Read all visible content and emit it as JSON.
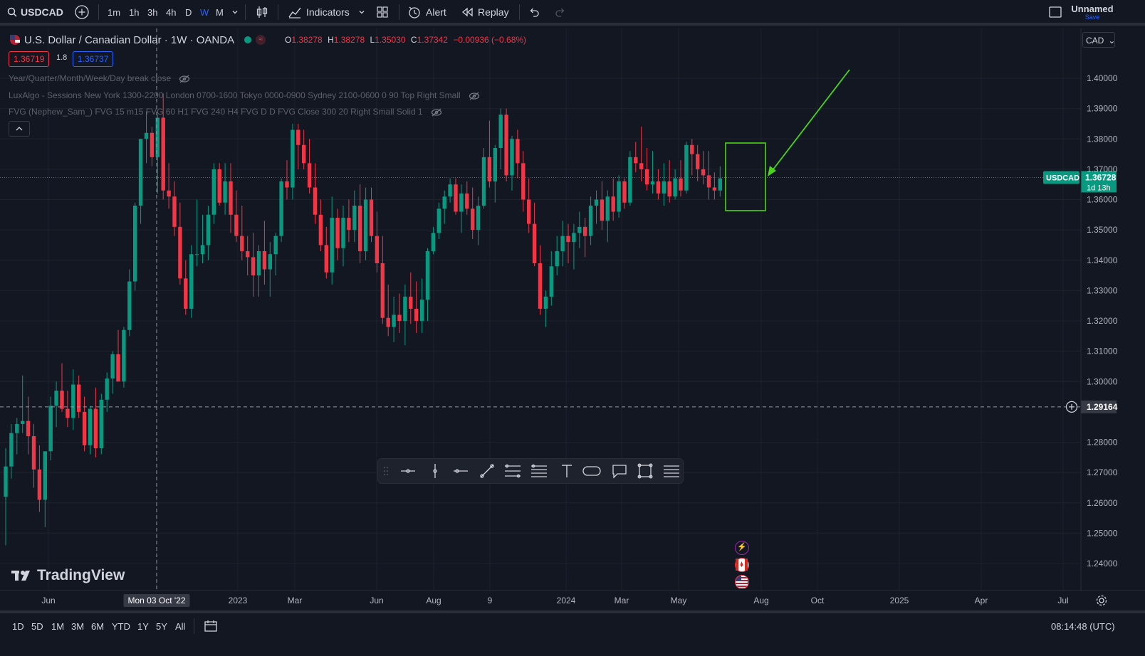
{
  "topbar": {
    "symbol": "USDCAD",
    "timeframes": [
      "1m",
      "1h",
      "3h",
      "4h",
      "D",
      "W",
      "M"
    ],
    "active_timeframe": "W",
    "indicators_label": "Indicators",
    "alert_label": "Alert",
    "replay_label": "Replay",
    "layout_name": "Unnamed",
    "save_label": "Save"
  },
  "legend": {
    "title": "U.S. Dollar / Canadian Dollar · 1W · OANDA",
    "o_label": "O",
    "o": "1.38278",
    "h_label": "H",
    "h": "1.38278",
    "l_label": "L",
    "l": "1.35030",
    "c_label": "C",
    "c": "1.37342",
    "change": "−0.00936 (−0.68%)",
    "bid": "1.36719",
    "spread": "1.8",
    "ask": "1.36737",
    "indicators": [
      "Year/Quarter/Month/Week/Day break close",
      "LuxAlgo - Sessions New York 1300-2200 London 0700-1600 Tokyo 0000-0900 Sydney 2100-0600 0 90 Top Right Small",
      "FVG (Nephew_Sam_) FVG 15 m15 FVG 60 H1 FVG 240 H4 FVG D D FVG Close 300 20 Right Small Solid 1"
    ]
  },
  "price_axis": {
    "currency": "CAD",
    "ticks": [
      "1.40000",
      "1.39000",
      "1.38000",
      "1.37000",
      "1.36000",
      "1.35000",
      "1.34000",
      "1.33000",
      "1.32000",
      "1.31000",
      "1.30000",
      "1.28000",
      "1.27000",
      "1.26000",
      "1.25000",
      "1.24000"
    ],
    "last_label": "USDCAD",
    "last_price": "1.36728",
    "countdown": "1d 13h",
    "crosshair_price": "1.29164"
  },
  "time_axis": {
    "labels": [
      "Jun",
      "Mon 03 Oct '22",
      "2023",
      "Mar",
      "Jun",
      "Aug",
      "9",
      "2024",
      "Mar",
      "May",
      "Aug",
      "Oct",
      "2025",
      "Apr",
      "Jul"
    ]
  },
  "bottombar": {
    "ranges": [
      "1D",
      "5D",
      "1M",
      "3M",
      "6M",
      "YTD",
      "1Y",
      "5Y",
      "All"
    ],
    "clock": "08:14:48 (UTC)"
  },
  "watermark": "TradingView",
  "colors": {
    "up": "#089981",
    "down": "#f23645",
    "background": "#131722",
    "highlight": "#4cd31a",
    "accent": "#2962ff"
  },
  "chart_data": {
    "type": "candlestick",
    "symbol": "USDCAD",
    "interval": "1W",
    "ylim": [
      1.235,
      1.407
    ],
    "candles": [
      [
        1.262,
        1.278,
        1.246,
        1.272
      ],
      [
        1.272,
        1.286,
        1.268,
        1.283
      ],
      [
        1.283,
        1.288,
        1.276,
        1.286
      ],
      [
        1.286,
        1.302,
        1.283,
        1.287
      ],
      [
        1.287,
        1.295,
        1.276,
        1.282
      ],
      [
        1.282,
        1.286,
        1.265,
        1.271
      ],
      [
        1.271,
        1.279,
        1.257,
        1.261
      ],
      [
        1.261,
        1.277,
        1.252,
        1.277
      ],
      [
        1.277,
        1.295,
        1.274,
        1.292
      ],
      [
        1.292,
        1.3,
        1.285,
        1.297
      ],
      [
        1.297,
        1.306,
        1.29,
        1.291
      ],
      [
        1.291,
        1.297,
        1.285,
        1.288
      ],
      [
        1.288,
        1.304,
        1.284,
        1.299
      ],
      [
        1.299,
        1.302,
        1.288,
        1.29
      ],
      [
        1.29,
        1.295,
        1.277,
        1.279
      ],
      [
        1.279,
        1.292,
        1.276,
        1.291
      ],
      [
        1.291,
        1.298,
        1.275,
        1.278
      ],
      [
        1.278,
        1.296,
        1.276,
        1.294
      ],
      [
        1.294,
        1.303,
        1.29,
        1.301
      ],
      [
        1.301,
        1.31,
        1.296,
        1.309
      ],
      [
        1.309,
        1.317,
        1.3,
        1.3
      ],
      [
        1.3,
        1.318,
        1.298,
        1.317
      ],
      [
        1.317,
        1.337,
        1.315,
        1.333
      ],
      [
        1.333,
        1.359,
        1.33,
        1.358
      ],
      [
        1.358,
        1.38,
        1.352,
        1.38
      ],
      [
        1.38,
        1.389,
        1.372,
        1.382
      ],
      [
        1.382,
        1.384,
        1.371,
        1.374
      ],
      [
        1.374,
        1.388,
        1.362,
        1.387
      ],
      [
        1.387,
        1.395,
        1.36,
        1.363
      ],
      [
        1.363,
        1.372,
        1.357,
        1.361
      ],
      [
        1.361,
        1.366,
        1.348,
        1.351
      ],
      [
        1.351,
        1.359,
        1.332,
        1.334
      ],
      [
        1.334,
        1.34,
        1.322,
        1.324
      ],
      [
        1.324,
        1.345,
        1.321,
        1.342
      ],
      [
        1.342,
        1.36,
        1.338,
        1.342
      ],
      [
        1.342,
        1.355,
        1.339,
        1.345
      ],
      [
        1.345,
        1.358,
        1.34,
        1.355
      ],
      [
        1.355,
        1.372,
        1.352,
        1.37
      ],
      [
        1.37,
        1.372,
        1.358,
        1.359
      ],
      [
        1.359,
        1.372,
        1.355,
        1.366
      ],
      [
        1.366,
        1.372,
        1.349,
        1.355
      ],
      [
        1.355,
        1.363,
        1.346,
        1.348
      ],
      [
        1.348,
        1.358,
        1.34,
        1.343
      ],
      [
        1.343,
        1.348,
        1.335,
        1.341
      ],
      [
        1.341,
        1.349,
        1.328,
        1.335
      ],
      [
        1.335,
        1.345,
        1.328,
        1.343
      ],
      [
        1.343,
        1.353,
        1.332,
        1.337
      ],
      [
        1.337,
        1.346,
        1.328,
        1.342
      ],
      [
        1.342,
        1.349,
        1.335,
        1.348
      ],
      [
        1.348,
        1.367,
        1.346,
        1.366
      ],
      [
        1.366,
        1.373,
        1.36,
        1.364
      ],
      [
        1.364,
        1.385,
        1.36,
        1.383
      ],
      [
        1.383,
        1.385,
        1.37,
        1.378
      ],
      [
        1.378,
        1.383,
        1.37,
        1.372
      ],
      [
        1.372,
        1.38,
        1.362,
        1.364
      ],
      [
        1.364,
        1.372,
        1.352,
        1.355
      ],
      [
        1.355,
        1.36,
        1.343,
        1.345
      ],
      [
        1.345,
        1.351,
        1.334,
        1.336
      ],
      [
        1.336,
        1.361,
        1.332,
        1.354
      ],
      [
        1.354,
        1.357,
        1.34,
        1.344
      ],
      [
        1.344,
        1.358,
        1.338,
        1.354
      ],
      [
        1.354,
        1.36,
        1.346,
        1.35
      ],
      [
        1.35,
        1.363,
        1.346,
        1.358
      ],
      [
        1.358,
        1.365,
        1.339,
        1.343
      ],
      [
        1.343,
        1.364,
        1.34,
        1.36
      ],
      [
        1.36,
        1.364,
        1.346,
        1.348
      ],
      [
        1.348,
        1.356,
        1.336,
        1.339
      ],
      [
        1.339,
        1.348,
        1.319,
        1.321
      ],
      [
        1.321,
        1.332,
        1.315,
        1.318
      ],
      [
        1.318,
        1.328,
        1.313,
        1.322
      ],
      [
        1.322,
        1.329,
        1.316,
        1.32
      ],
      [
        1.32,
        1.332,
        1.312,
        1.328
      ],
      [
        1.328,
        1.336,
        1.319,
        1.324
      ],
      [
        1.324,
        1.333,
        1.316,
        1.32
      ],
      [
        1.32,
        1.334,
        1.316,
        1.327
      ],
      [
        1.327,
        1.344,
        1.32,
        1.343
      ],
      [
        1.343,
        1.351,
        1.342,
        1.349
      ],
      [
        1.349,
        1.359,
        1.347,
        1.357
      ],
      [
        1.357,
        1.363,
        1.352,
        1.361
      ],
      [
        1.361,
        1.367,
        1.359,
        1.365
      ],
      [
        1.365,
        1.367,
        1.355,
        1.356
      ],
      [
        1.356,
        1.365,
        1.349,
        1.362
      ],
      [
        1.362,
        1.366,
        1.355,
        1.357
      ],
      [
        1.357,
        1.364,
        1.347,
        1.35
      ],
      [
        1.35,
        1.361,
        1.345,
        1.358
      ],
      [
        1.358,
        1.377,
        1.357,
        1.374
      ],
      [
        1.374,
        1.386,
        1.364,
        1.366
      ],
      [
        1.366,
        1.378,
        1.359,
        1.377
      ],
      [
        1.377,
        1.39,
        1.37,
        1.388
      ],
      [
        1.388,
        1.39,
        1.366,
        1.368
      ],
      [
        1.368,
        1.381,
        1.363,
        1.38
      ],
      [
        1.38,
        1.383,
        1.367,
        1.372
      ],
      [
        1.372,
        1.376,
        1.356,
        1.36
      ],
      [
        1.36,
        1.367,
        1.349,
        1.352
      ],
      [
        1.352,
        1.359,
        1.338,
        1.339
      ],
      [
        1.339,
        1.345,
        1.322,
        1.324
      ],
      [
        1.324,
        1.33,
        1.318,
        1.328
      ],
      [
        1.328,
        1.343,
        1.325,
        1.338
      ],
      [
        1.338,
        1.348,
        1.335,
        1.343
      ],
      [
        1.343,
        1.353,
        1.338,
        1.348
      ],
      [
        1.348,
        1.352,
        1.339,
        1.346
      ],
      [
        1.346,
        1.352,
        1.337,
        1.349
      ],
      [
        1.349,
        1.356,
        1.344,
        1.351
      ],
      [
        1.351,
        1.354,
        1.341,
        1.348
      ],
      [
        1.348,
        1.361,
        1.345,
        1.358
      ],
      [
        1.358,
        1.363,
        1.352,
        1.36
      ],
      [
        1.36,
        1.366,
        1.35,
        1.353
      ],
      [
        1.353,
        1.363,
        1.346,
        1.361
      ],
      [
        1.361,
        1.367,
        1.353,
        1.356
      ],
      [
        1.356,
        1.368,
        1.354,
        1.366
      ],
      [
        1.366,
        1.367,
        1.357,
        1.359
      ],
      [
        1.359,
        1.376,
        1.358,
        1.374
      ],
      [
        1.374,
        1.379,
        1.369,
        1.372
      ],
      [
        1.372,
        1.384,
        1.366,
        1.37
      ],
      [
        1.37,
        1.377,
        1.363,
        1.365
      ],
      [
        1.365,
        1.376,
        1.362,
        1.366
      ],
      [
        1.366,
        1.37,
        1.36,
        1.362
      ],
      [
        1.362,
        1.372,
        1.358,
        1.366
      ],
      [
        1.366,
        1.373,
        1.359,
        1.361
      ],
      [
        1.361,
        1.37,
        1.36,
        1.367
      ],
      [
        1.367,
        1.373,
        1.361,
        1.363
      ],
      [
        1.363,
        1.379,
        1.362,
        1.378
      ],
      [
        1.378,
        1.38,
        1.368,
        1.375
      ],
      [
        1.375,
        1.378,
        1.366,
        1.37
      ],
      [
        1.37,
        1.376,
        1.365,
        1.368
      ],
      [
        1.368,
        1.376,
        1.36,
        1.364
      ],
      [
        1.364,
        1.369,
        1.36,
        1.363
      ],
      [
        1.363,
        1.371,
        1.361,
        1.367
      ]
    ]
  }
}
